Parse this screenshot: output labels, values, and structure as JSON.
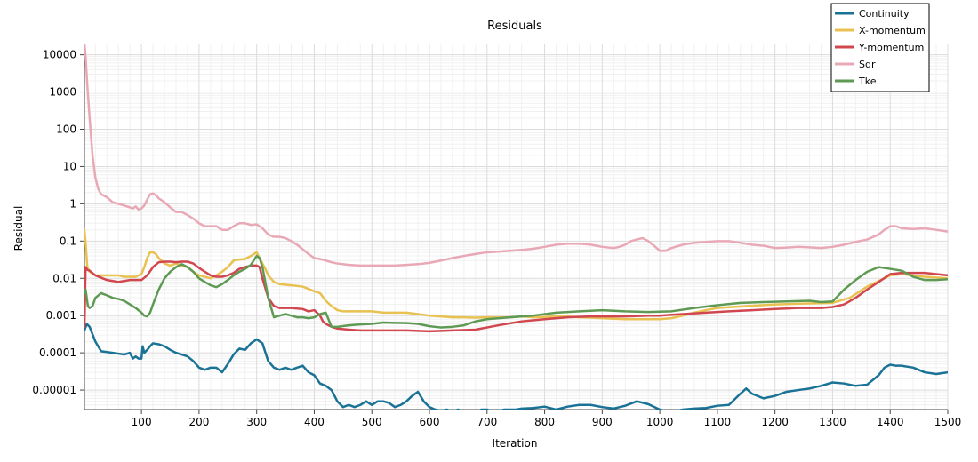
{
  "chart_data": {
    "type": "line",
    "title": "Residuals",
    "xlabel": "Iteration",
    "ylabel": "Residual",
    "xlim": [
      1,
      1500
    ],
    "ylim": [
      3e-06,
      20000
    ],
    "yscale": "log",
    "grid": true,
    "legend_position": "top-right",
    "x_ticks": [
      100,
      200,
      300,
      400,
      500,
      600,
      700,
      800,
      900,
      1000,
      1100,
      1200,
      1300,
      1400,
      1500
    ],
    "x_tick_labels": [
      "100",
      "200",
      "300",
      "400",
      "500",
      "600",
      "700",
      "800",
      "900",
      "1000",
      "1100",
      "1200",
      "1300",
      "1400",
      "1500"
    ],
    "y_ticks": [
      1e-05,
      0.0001,
      0.001,
      0.01,
      0.1,
      1,
      10,
      100,
      1000,
      10000
    ],
    "y_tick_labels": [
      "0.00001",
      "0.0001",
      "0.001",
      "0.01",
      "0.1",
      "1",
      "10",
      "100",
      "1000",
      "10000"
    ],
    "series": [
      {
        "name": "Continuity",
        "color": "#1a7396",
        "x": [
          1,
          5,
          10,
          20,
          30,
          50,
          70,
          80,
          85,
          90,
          95,
          100,
          102,
          105,
          110,
          115,
          120,
          130,
          140,
          150,
          160,
          170,
          180,
          190,
          200,
          210,
          220,
          230,
          240,
          250,
          260,
          270,
          280,
          290,
          300,
          310,
          320,
          330,
          340,
          350,
          360,
          370,
          380,
          390,
          400,
          410,
          420,
          430,
          440,
          450,
          460,
          470,
          480,
          490,
          500,
          510,
          520,
          530,
          540,
          550,
          560,
          570,
          580,
          590,
          600,
          610,
          620,
          630,
          640,
          650,
          660,
          670,
          680,
          690,
          700,
          710,
          720,
          730,
          740,
          750,
          760,
          780,
          800,
          820,
          840,
          860,
          880,
          900,
          920,
          940,
          960,
          980,
          1000,
          1020,
          1040,
          1060,
          1080,
          1100,
          1120,
          1140,
          1150,
          1160,
          1180,
          1200,
          1220,
          1240,
          1260,
          1280,
          1300,
          1320,
          1340,
          1360,
          1380,
          1390,
          1400,
          1410,
          1420,
          1440,
          1460,
          1480,
          1500
        ],
        "values": [
          0.0004,
          0.0006,
          0.0005,
          0.0002,
          0.00011,
          0.0001,
          9e-05,
          0.0001,
          7e-05,
          8e-05,
          7e-05,
          7e-05,
          0.00015,
          0.0001,
          0.00012,
          0.00015,
          0.00018,
          0.00017,
          0.00015,
          0.00012,
          0.0001,
          9e-05,
          8e-05,
          6e-05,
          4e-05,
          3.5e-05,
          4e-05,
          4e-05,
          3e-05,
          5e-05,
          9e-05,
          0.00013,
          0.00012,
          0.00018,
          0.00023,
          0.00018,
          6e-05,
          4e-05,
          3.5e-05,
          4e-05,
          3.5e-05,
          4e-05,
          4.5e-05,
          3e-05,
          2.5e-05,
          1.5e-05,
          1.3e-05,
          1e-05,
          5e-06,
          3.5e-06,
          4e-06,
          3.5e-06,
          4e-06,
          5e-06,
          4e-06,
          5e-06,
          5e-06,
          4.5e-06,
          3.5e-06,
          4e-06,
          5e-06,
          7e-06,
          9e-06,
          5e-06,
          3.5e-06,
          3e-06,
          2.8e-06,
          3e-06,
          2.7e-06,
          3e-06,
          2.6e-06,
          2.8e-06,
          2.6e-06,
          3e-06,
          3e-06,
          2.7e-06,
          2.8e-06,
          3e-06,
          3e-06,
          3e-06,
          3.2e-06,
          3.3e-06,
          3.6e-06,
          3e-06,
          3.6e-06,
          4e-06,
          4e-06,
          3.5e-06,
          3.2e-06,
          3.8e-06,
          5e-06,
          4.2e-06,
          3e-06,
          2.6e-06,
          3e-06,
          3.2e-06,
          3.3e-06,
          3.8e-06,
          4e-06,
          8e-06,
          1.1e-05,
          8e-06,
          6e-06,
          7e-06,
          9e-06,
          1e-05,
          1.1e-05,
          1.3e-05,
          1.6e-05,
          1.5e-05,
          1.3e-05,
          1.4e-05,
          2.5e-05,
          4e-05,
          4.8e-05,
          4.5e-05,
          4.5e-05,
          4e-05,
          3e-05,
          2.7e-05,
          3e-05
        ]
      },
      {
        "name": "X-momentum",
        "color": "#e8c150",
        "x": [
          1,
          3,
          6,
          10,
          20,
          40,
          60,
          70,
          80,
          90,
          100,
          105,
          110,
          115,
          120,
          125,
          130,
          140,
          150,
          160,
          170,
          180,
          190,
          200,
          210,
          220,
          230,
          240,
          250,
          260,
          270,
          280,
          290,
          300,
          305,
          310,
          315,
          320,
          330,
          340,
          360,
          380,
          400,
          410,
          420,
          430,
          440,
          450,
          480,
          500,
          520,
          540,
          560,
          580,
          600,
          620,
          640,
          660,
          680,
          700,
          720,
          740,
          760,
          780,
          800,
          820,
          840,
          860,
          880,
          900,
          920,
          940,
          960,
          980,
          1000,
          1020,
          1040,
          1060,
          1080,
          1100,
          1150,
          1200,
          1250,
          1300,
          1330,
          1360,
          1390,
          1400,
          1420,
          1440,
          1460,
          1480,
          1500
        ],
        "values": [
          0.2,
          0.09,
          0.02,
          0.015,
          0.012,
          0.012,
          0.012,
          0.011,
          0.011,
          0.011,
          0.013,
          0.02,
          0.035,
          0.05,
          0.05,
          0.045,
          0.035,
          0.025,
          0.022,
          0.025,
          0.022,
          0.02,
          0.015,
          0.012,
          0.011,
          0.01,
          0.012,
          0.015,
          0.02,
          0.03,
          0.032,
          0.033,
          0.04,
          0.05,
          0.035,
          0.025,
          0.018,
          0.012,
          0.008,
          0.007,
          0.0065,
          0.006,
          0.0045,
          0.004,
          0.0025,
          0.0018,
          0.0014,
          0.0013,
          0.0013,
          0.0013,
          0.0012,
          0.0012,
          0.0012,
          0.0011,
          0.001,
          0.00095,
          0.0009,
          0.0009,
          0.00088,
          0.0009,
          0.0009,
          0.0009,
          0.00095,
          0.0009,
          0.00092,
          0.00095,
          0.00095,
          0.0009,
          0.00088,
          0.00085,
          0.00082,
          0.0008,
          0.0008,
          0.0008,
          0.0008,
          0.00085,
          0.001,
          0.0012,
          0.0014,
          0.0016,
          0.0018,
          0.002,
          0.0021,
          0.0022,
          0.003,
          0.006,
          0.01,
          0.012,
          0.013,
          0.012,
          0.011,
          0.0105,
          0.01
        ]
      },
      {
        "name": "Y-momentum",
        "color": "#d1474f",
        "x": [
          1,
          3,
          6,
          10,
          20,
          40,
          60,
          70,
          80,
          90,
          100,
          110,
          120,
          130,
          140,
          150,
          160,
          170,
          180,
          190,
          200,
          210,
          220,
          230,
          240,
          250,
          260,
          270,
          280,
          290,
          300,
          305,
          310,
          320,
          330,
          340,
          360,
          380,
          390,
          400,
          410,
          415,
          420,
          430,
          440,
          460,
          480,
          500,
          520,
          560,
          600,
          640,
          680,
          720,
          760,
          800,
          840,
          880,
          900,
          940,
          980,
          1000,
          1040,
          1080,
          1120,
          1160,
          1200,
          1240,
          1280,
          1300,
          1320,
          1340,
          1360,
          1380,
          1400,
          1420,
          1440,
          1460,
          1480,
          1500
        ],
        "values": [
          0.0005,
          0.02,
          0.017,
          0.016,
          0.012,
          0.009,
          0.008,
          0.0085,
          0.009,
          0.009,
          0.009,
          0.012,
          0.02,
          0.027,
          0.028,
          0.028,
          0.027,
          0.028,
          0.028,
          0.025,
          0.019,
          0.015,
          0.012,
          0.011,
          0.011,
          0.012,
          0.014,
          0.018,
          0.02,
          0.022,
          0.022,
          0.02,
          0.01,
          0.003,
          0.0018,
          0.0016,
          0.0016,
          0.0015,
          0.0013,
          0.0014,
          0.001,
          0.0007,
          0.0006,
          0.0005,
          0.00045,
          0.00042,
          0.0004,
          0.0004,
          0.0004,
          0.0004,
          0.00038,
          0.0004,
          0.00042,
          0.00055,
          0.0007,
          0.0008,
          0.0009,
          0.00095,
          0.00095,
          0.00095,
          0.001,
          0.001,
          0.0011,
          0.0012,
          0.0013,
          0.0014,
          0.0015,
          0.0016,
          0.0016,
          0.0017,
          0.002,
          0.003,
          0.005,
          0.008,
          0.013,
          0.014,
          0.014,
          0.014,
          0.013,
          0.012
        ]
      },
      {
        "name": "Sdr",
        "color": "#e9a8b5",
        "x": [
          1,
          3,
          6,
          10,
          15,
          20,
          25,
          30,
          40,
          50,
          60,
          70,
          80,
          85,
          90,
          95,
          100,
          105,
          110,
          115,
          120,
          125,
          130,
          140,
          150,
          160,
          170,
          180,
          190,
          200,
          210,
          220,
          230,
          240,
          250,
          260,
          270,
          280,
          290,
          300,
          305,
          310,
          320,
          330,
          340,
          350,
          360,
          370,
          380,
          390,
          400,
          410,
          420,
          430,
          440,
          460,
          480,
          500,
          520,
          540,
          560,
          580,
          600,
          620,
          640,
          660,
          680,
          700,
          720,
          740,
          760,
          780,
          800,
          820,
          840,
          860,
          880,
          900,
          920,
          930,
          940,
          950,
          960,
          970,
          980,
          990,
          1000,
          1010,
          1020,
          1040,
          1060,
          1080,
          1100,
          1120,
          1140,
          1160,
          1180,
          1200,
          1220,
          1240,
          1260,
          1280,
          1300,
          1320,
          1340,
          1360,
          1380,
          1390,
          1400,
          1410,
          1420,
          1440,
          1460,
          1480,
          1500
        ],
        "values": [
          20000,
          9000,
          1500,
          200,
          20,
          5,
          2.5,
          1.8,
          1.5,
          1.1,
          1.0,
          0.9,
          0.8,
          0.75,
          0.85,
          0.7,
          0.75,
          0.9,
          1.3,
          1.8,
          1.9,
          1.7,
          1.4,
          1.1,
          0.8,
          0.6,
          0.6,
          0.5,
          0.4,
          0.3,
          0.25,
          0.25,
          0.25,
          0.2,
          0.2,
          0.25,
          0.3,
          0.3,
          0.27,
          0.28,
          0.25,
          0.22,
          0.15,
          0.13,
          0.13,
          0.12,
          0.1,
          0.08,
          0.06,
          0.045,
          0.035,
          0.033,
          0.03,
          0.027,
          0.025,
          0.023,
          0.022,
          0.022,
          0.022,
          0.022,
          0.023,
          0.024,
          0.026,
          0.03,
          0.035,
          0.04,
          0.045,
          0.05,
          0.052,
          0.055,
          0.058,
          0.062,
          0.07,
          0.08,
          0.085,
          0.085,
          0.08,
          0.07,
          0.065,
          0.07,
          0.08,
          0.1,
          0.11,
          0.12,
          0.1,
          0.075,
          0.055,
          0.055,
          0.065,
          0.08,
          0.09,
          0.095,
          0.1,
          0.1,
          0.09,
          0.08,
          0.075,
          0.065,
          0.067,
          0.07,
          0.068,
          0.065,
          0.07,
          0.08,
          0.095,
          0.11,
          0.15,
          0.2,
          0.25,
          0.25,
          0.22,
          0.21,
          0.22,
          0.2,
          0.18
        ]
      },
      {
        "name": "Tke",
        "color": "#5e9a54",
        "x": [
          1,
          3,
          5,
          7,
          10,
          15,
          20,
          30,
          40,
          50,
          60,
          70,
          80,
          90,
          100,
          105,
          110,
          115,
          120,
          130,
          140,
          150,
          160,
          170,
          180,
          190,
          200,
          210,
          220,
          230,
          240,
          250,
          260,
          270,
          280,
          290,
          300,
          305,
          310,
          315,
          320,
          330,
          340,
          350,
          360,
          370,
          380,
          390,
          400,
          410,
          420,
          430,
          440,
          460,
          480,
          500,
          520,
          540,
          560,
          580,
          600,
          620,
          640,
          660,
          680,
          700,
          740,
          780,
          820,
          860,
          900,
          940,
          980,
          1020,
          1060,
          1100,
          1140,
          1180,
          1220,
          1260,
          1280,
          1300,
          1320,
          1340,
          1360,
          1380,
          1400,
          1420,
          1440,
          1460,
          1480,
          1500
        ],
        "values": [
          0.004,
          0.005,
          0.003,
          0.0018,
          0.0016,
          0.0018,
          0.003,
          0.004,
          0.0035,
          0.003,
          0.0028,
          0.0025,
          0.002,
          0.0016,
          0.0012,
          0.001,
          0.00095,
          0.0012,
          0.002,
          0.005,
          0.01,
          0.015,
          0.02,
          0.024,
          0.02,
          0.015,
          0.01,
          0.008,
          0.0065,
          0.0058,
          0.007,
          0.009,
          0.012,
          0.015,
          0.018,
          0.023,
          0.04,
          0.035,
          0.02,
          0.008,
          0.003,
          0.0009,
          0.001,
          0.0011,
          0.001,
          0.0009,
          0.0009,
          0.00085,
          0.0009,
          0.0011,
          0.0012,
          0.0005,
          0.0005,
          0.00055,
          0.00058,
          0.0006,
          0.00065,
          0.00064,
          0.00063,
          0.0006,
          0.00052,
          0.00048,
          0.0005,
          0.00055,
          0.0007,
          0.0008,
          0.0009,
          0.001,
          0.0012,
          0.0013,
          0.0014,
          0.0013,
          0.00125,
          0.0013,
          0.0016,
          0.0019,
          0.0022,
          0.0023,
          0.0024,
          0.0025,
          0.0023,
          0.0024,
          0.005,
          0.009,
          0.015,
          0.02,
          0.018,
          0.016,
          0.011,
          0.009,
          0.009,
          0.0095
        ]
      }
    ]
  }
}
